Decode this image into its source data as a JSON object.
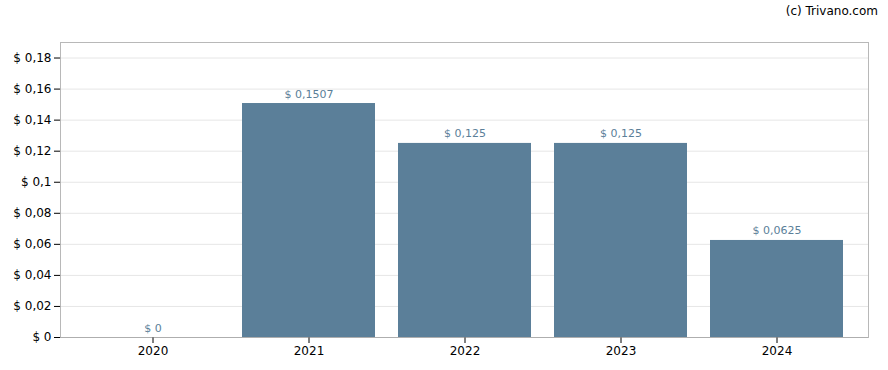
{
  "chart_data": {
    "type": "bar",
    "categories": [
      "2020",
      "2021",
      "2022",
      "2023",
      "2024"
    ],
    "values": [
      0,
      0.1507,
      0.125,
      0.125,
      0.0625
    ],
    "value_labels": [
      "$ 0",
      "$ 0,1507",
      "$ 0,125",
      "$ 0,125",
      "$ 0,0625"
    ],
    "data_labels": true,
    "color": "#5b7f99",
    "ylim": [
      0,
      0.19
    ],
    "yticks": [
      {
        "value": 0,
        "label": "$ 0"
      },
      {
        "value": 0.02,
        "label": "$ 0,02"
      },
      {
        "value": 0.04,
        "label": "$ 0,04"
      },
      {
        "value": 0.06,
        "label": "$ 0,06"
      },
      {
        "value": 0.08,
        "label": "$ 0,08"
      },
      {
        "value": 0.1,
        "label": "$ 0,1"
      },
      {
        "value": 0.12,
        "label": "$ 0,12"
      },
      {
        "value": 0.14,
        "label": "$ 0,14"
      },
      {
        "value": 0.16,
        "label": "$ 0,16"
      },
      {
        "value": 0.18,
        "label": "$ 0,18"
      }
    ],
    "grid": true,
    "annotations": [
      "(c) Trivano.com"
    ]
  }
}
